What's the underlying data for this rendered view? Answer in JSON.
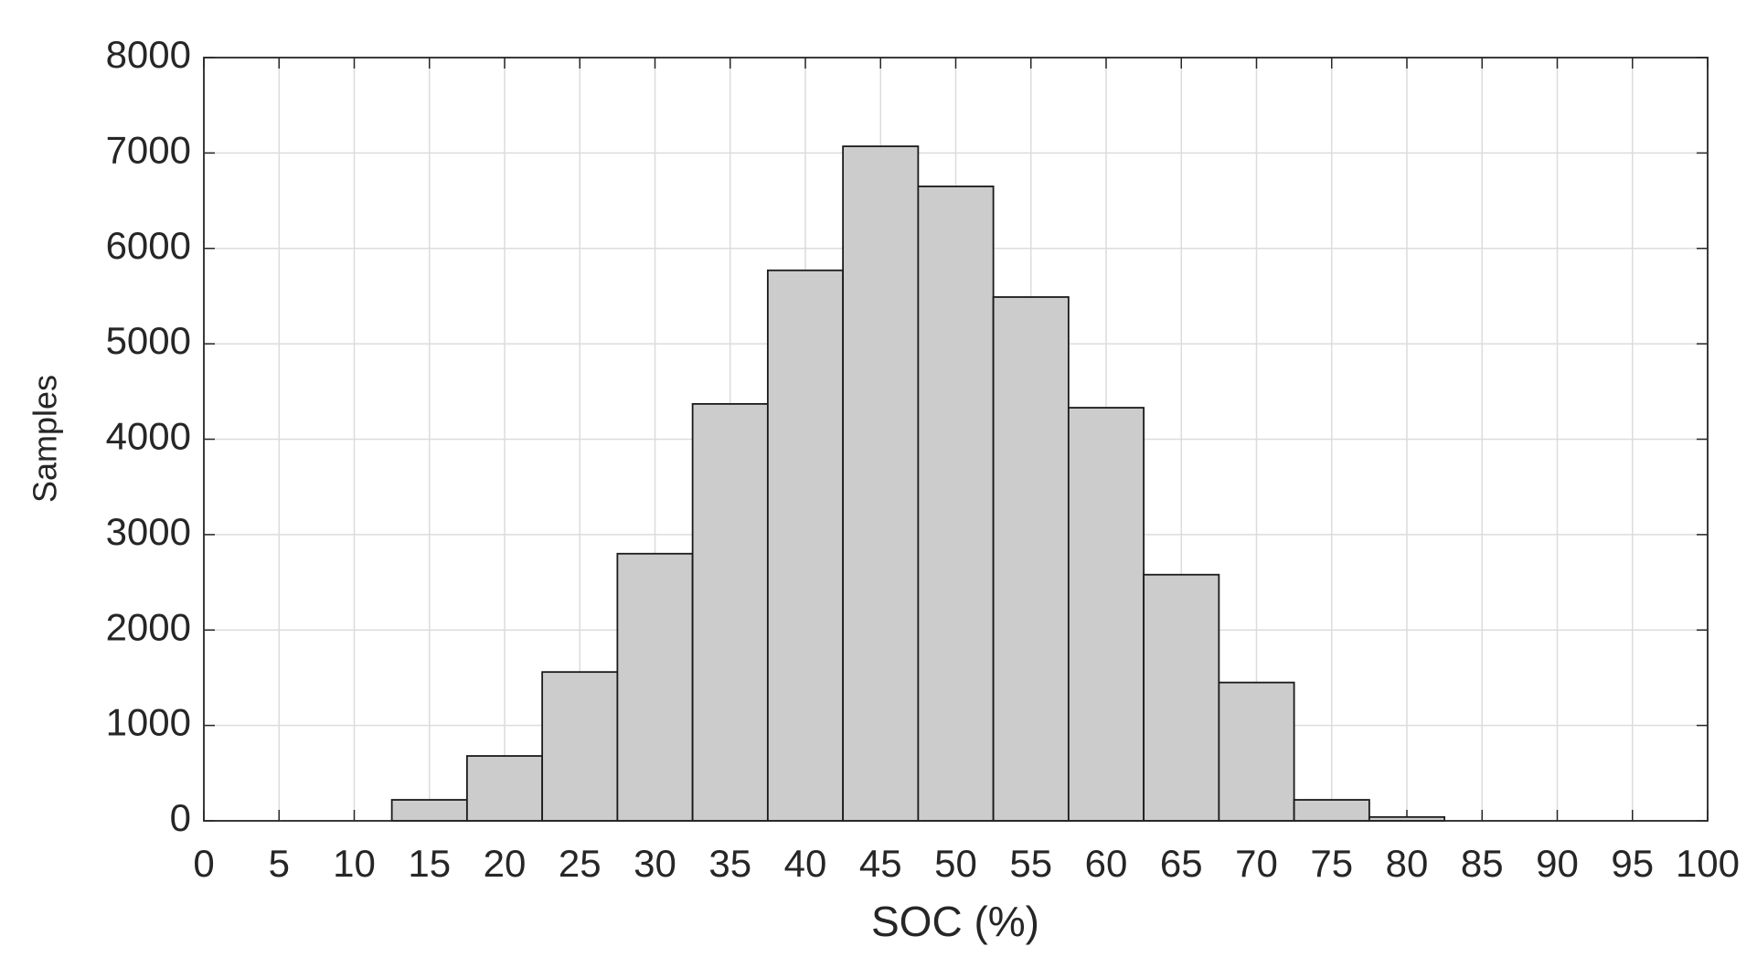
{
  "chart_data": {
    "type": "histogram",
    "xlabel": "SOC (%)",
    "ylabel": "Samples",
    "bins": [
      12.5,
      17.5,
      22.5,
      27.5,
      32.5,
      37.5,
      42.5,
      47.5,
      52.5,
      57.5,
      62.5,
      67.5,
      72.5,
      77.5,
      82.5
    ],
    "values": [
      220,
      680,
      1560,
      2800,
      4370,
      5770,
      7070,
      6650,
      5490,
      4330,
      2580,
      1450,
      220,
      40
    ],
    "color": "#cccccc",
    "edgecolor": "#1a1a1a",
    "xlim": [
      0,
      100
    ],
    "xticks": [
      0,
      5,
      10,
      15,
      20,
      25,
      30,
      35,
      40,
      45,
      50,
      55,
      60,
      65,
      70,
      75,
      80,
      85,
      90,
      95,
      100
    ],
    "ylim": [
      0,
      8000
    ],
    "yticks": [
      0,
      1000,
      2000,
      3000,
      4000,
      5000,
      6000,
      7000,
      8000
    ],
    "grid": true
  }
}
